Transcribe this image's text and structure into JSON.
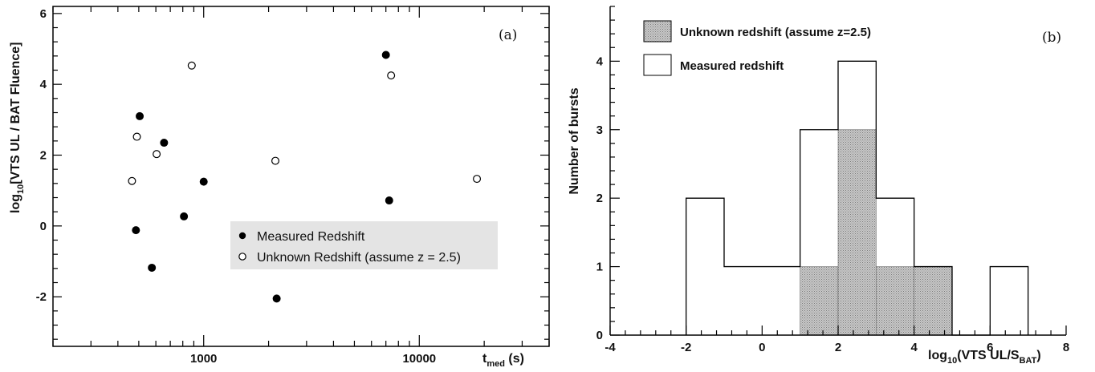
{
  "chart_data": [
    {
      "type": "scatter",
      "panel_label": "(a)",
      "xlabel": "t",
      "xlabel_sub": "med",
      "xlabel_unit": " (s)",
      "ylabel": "log",
      "ylabel_sub": "10",
      "ylabel_rest": "[VTS UL / BAT Fluence]",
      "x_scale": "log",
      "xlim": [
        200,
        40000
      ],
      "ylim": [
        -3.4,
        6.2
      ],
      "x_ticks": [
        1000,
        10000
      ],
      "x_tick_labels": [
        "1000",
        "10000"
      ],
      "y_ticks": [
        -2,
        0,
        2,
        4,
        6
      ],
      "y_tick_labels": [
        "-2",
        "0",
        "2",
        "4",
        "6"
      ],
      "legend": {
        "position": "bottom-right",
        "background": "#e4e4e4",
        "entries": [
          "Measured Redshift",
          "Unknown Redshift (assume z = 2.5)"
        ]
      },
      "series": [
        {
          "name": "Measured Redshift",
          "marker": "filled-circle",
          "points": [
            {
              "x": 505,
              "y": 3.1
            },
            {
              "x": 655,
              "y": 2.35
            },
            {
              "x": 1000,
              "y": 1.25
            },
            {
              "x": 810,
              "y": 0.27
            },
            {
              "x": 485,
              "y": -0.12
            },
            {
              "x": 575,
              "y": -1.18
            },
            {
              "x": 2180,
              "y": -2.05
            },
            {
              "x": 7000,
              "y": 4.83
            },
            {
              "x": 7250,
              "y": 0.72
            }
          ]
        },
        {
          "name": "Unknown Redshift (assume z = 2.5)",
          "marker": "open-circle",
          "points": [
            {
              "x": 880,
              "y": 4.53
            },
            {
              "x": 490,
              "y": 2.52
            },
            {
              "x": 605,
              "y": 2.03
            },
            {
              "x": 465,
              "y": 1.27
            },
            {
              "x": 2150,
              "y": 1.84
            },
            {
              "x": 7400,
              "y": 4.25
            },
            {
              "x": 18500,
              "y": 1.33
            }
          ]
        }
      ]
    },
    {
      "type": "histogram",
      "panel_label": "(b)",
      "xlabel": "log",
      "xlabel_sub": "10",
      "xlabel_mid": "(VTS UL/S",
      "xlabel_sub2": "BAT",
      "xlabel_end": ")",
      "ylabel": "Number of bursts",
      "xlim": [
        -4,
        8
      ],
      "ylim": [
        0,
        4.8
      ],
      "x_ticks": [
        -4,
        -2,
        0,
        2,
        4,
        6,
        8
      ],
      "x_tick_labels": [
        "-4",
        "-2",
        "0",
        "2",
        "4",
        "6",
        "8"
      ],
      "y_ticks": [
        0,
        1,
        2,
        3,
        4
      ],
      "y_tick_labels": [
        "0",
        "1",
        "2",
        "3",
        "4"
      ],
      "bin_edges": [
        -2,
        -1,
        0,
        1,
        2,
        3,
        4,
        5,
        6,
        7
      ],
      "legend": {
        "position": "top-left",
        "entries": [
          "Unknown redshift (assume z=2.5)",
          "Measured redshift"
        ]
      },
      "series": [
        {
          "name": "Measured redshift",
          "style": "open-outline",
          "values": [
            2,
            1,
            1,
            3,
            4,
            2,
            1,
            0,
            1
          ]
        },
        {
          "name": "Unknown redshift (assume z=2.5)",
          "style": "shaded",
          "fill": "#b4b4b4",
          "values": [
            0,
            0,
            0,
            1,
            3,
            1,
            1,
            0,
            0
          ]
        }
      ]
    }
  ]
}
